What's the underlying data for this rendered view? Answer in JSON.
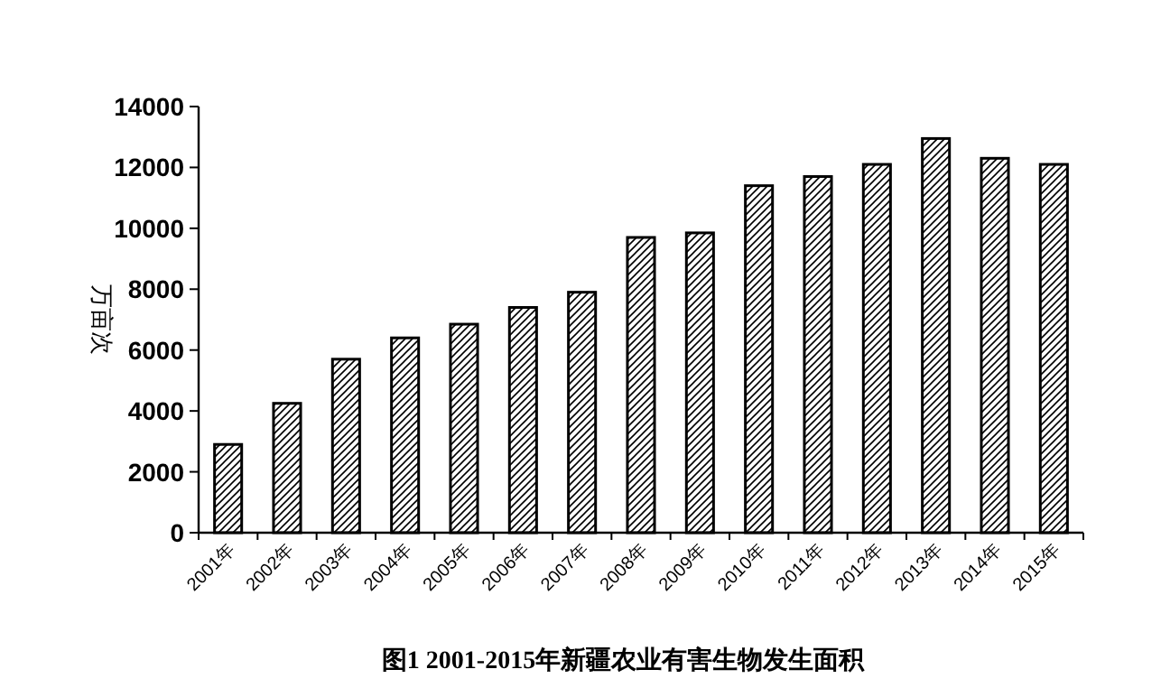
{
  "chart_data": {
    "type": "bar",
    "title": "图1  2001-2015年新疆农业有害生物发生面积",
    "ylabel": "万亩次",
    "categories": [
      "2001年",
      "2002年",
      "2003年",
      "2004年",
      "2005年",
      "2006年",
      "2007年",
      "2008年",
      "2009年",
      "2010年",
      "2011年",
      "2012年",
      "2013年",
      "2014年",
      "2015年"
    ],
    "values": [
      2900,
      4250,
      5700,
      6400,
      6850,
      7400,
      7900,
      9700,
      9850,
      11400,
      11700,
      12100,
      12950,
      12300,
      12100
    ],
    "color": "#000000",
    "ylim": [
      0,
      14000
    ],
    "yticks": [
      0,
      2000,
      4000,
      6000,
      8000,
      10000,
      12000,
      14000
    ],
    "grid": false
  }
}
